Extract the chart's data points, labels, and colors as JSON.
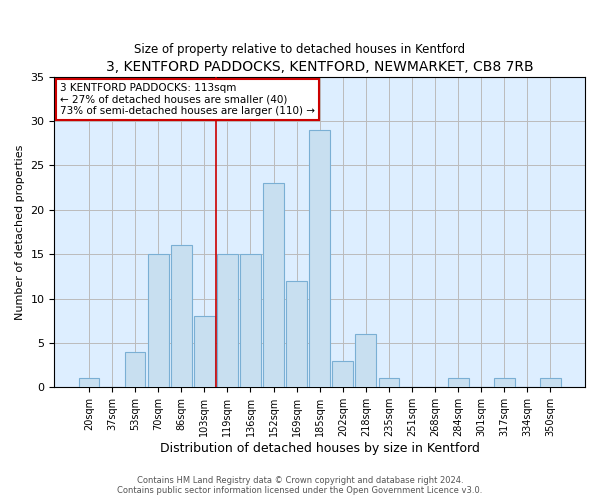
{
  "title": "3, KENTFORD PADDOCKS, KENTFORD, NEWMARKET, CB8 7RB",
  "subtitle": "Size of property relative to detached houses in Kentford",
  "xlabel": "Distribution of detached houses by size in Kentford",
  "ylabel": "Number of detached properties",
  "bar_labels": [
    "20sqm",
    "37sqm",
    "53sqm",
    "70sqm",
    "86sqm",
    "103sqm",
    "119sqm",
    "136sqm",
    "152sqm",
    "169sqm",
    "185sqm",
    "202sqm",
    "218sqm",
    "235sqm",
    "251sqm",
    "268sqm",
    "284sqm",
    "301sqm",
    "317sqm",
    "334sqm",
    "350sqm"
  ],
  "bar_values": [
    1,
    0,
    4,
    15,
    16,
    8,
    15,
    15,
    23,
    12,
    29,
    3,
    6,
    1,
    0,
    0,
    1,
    0,
    1,
    0,
    1
  ],
  "bar_color": "#c8dff0",
  "bar_edge_color": "#7aafd4",
  "plot_bg_color": "#ddeeff",
  "ylim": [
    0,
    35
  ],
  "yticks": [
    0,
    5,
    10,
    15,
    20,
    25,
    30,
    35
  ],
  "annotation_title": "3 KENTFORD PADDOCKS: 113sqm",
  "annotation_line1": "← 27% of detached houses are smaller (40)",
  "annotation_line2": "73% of semi-detached houses are larger (110) →",
  "annotation_box_color": "#ffffff",
  "annotation_box_edge": "#cc0000",
  "vline_x": 5.5,
  "vline_color": "#cc0000",
  "footer_line1": "Contains HM Land Registry data © Crown copyright and database right 2024.",
  "footer_line2": "Contains public sector information licensed under the Open Government Licence v3.0.",
  "background_color": "#ffffff",
  "grid_color": "#bbbbbb"
}
